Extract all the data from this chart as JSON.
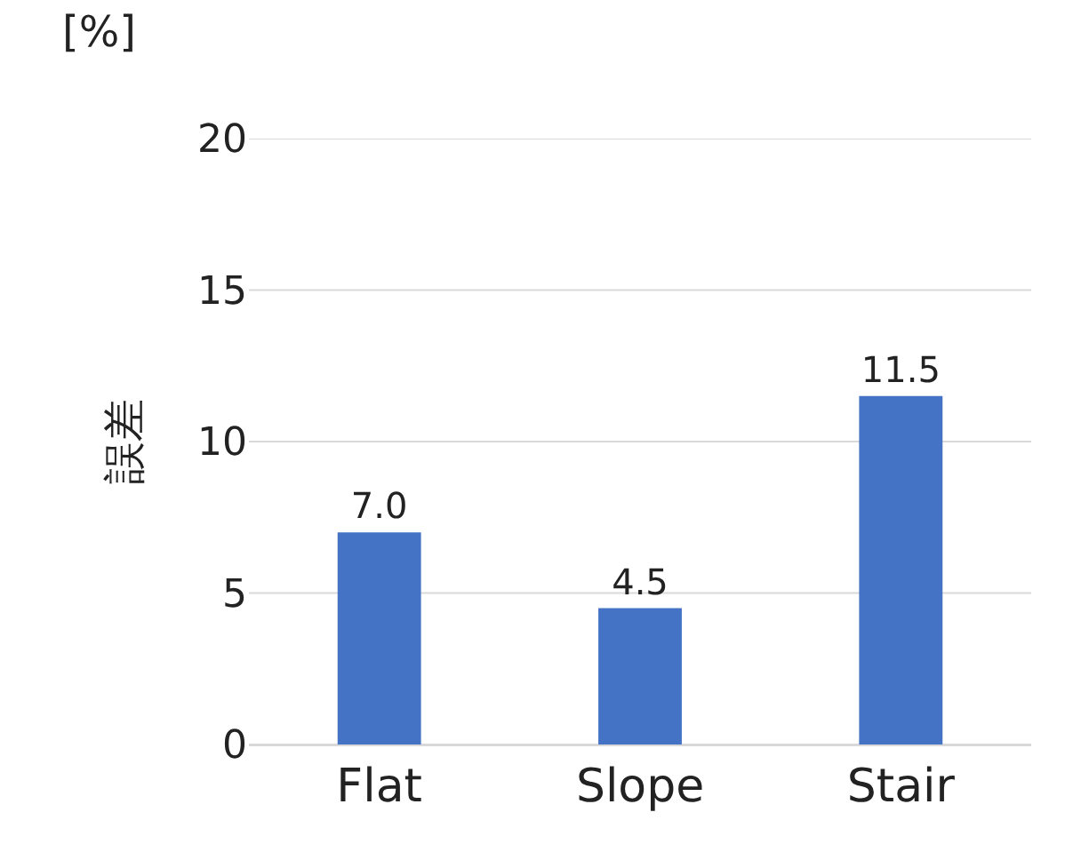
{
  "chart_data": {
    "type": "bar",
    "ylabel": "誤差",
    "annotations": [
      "[%]"
    ],
    "categories": [
      "Flat",
      "Slope",
      "Stair"
    ],
    "series": [
      {
        "color": "#4472c4",
        "values": [
          7.0,
          4.5,
          11.5
        ]
      }
    ],
    "value_labels": [
      "7.0",
      "4.5",
      "11.5"
    ],
    "ylim": [
      0,
      20
    ],
    "yticks": [
      0,
      5,
      10,
      15,
      20
    ],
    "grid": "y"
  }
}
